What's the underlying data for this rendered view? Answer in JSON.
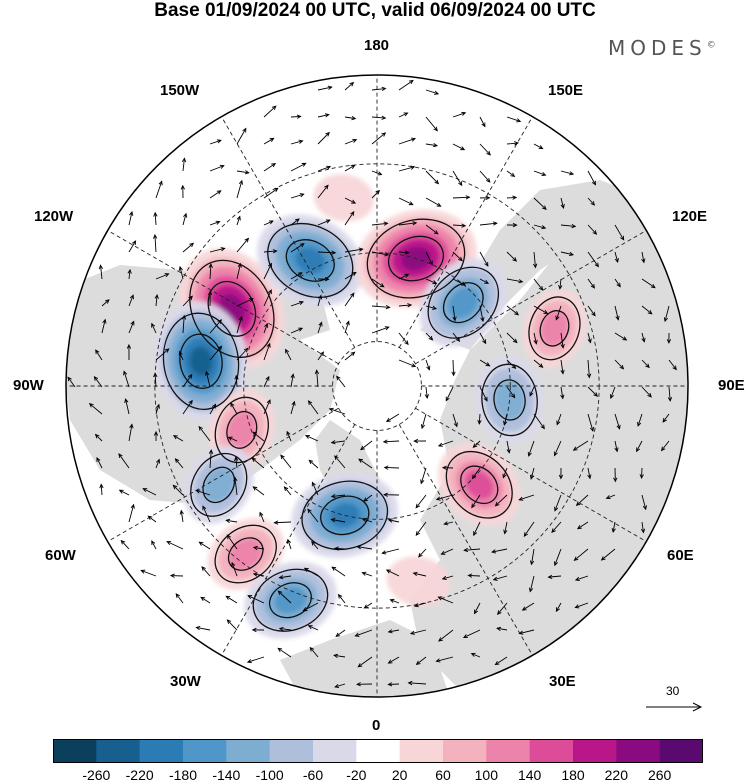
{
  "title": "Base 01/09/2024 00 UTC, valid 06/09/2024 00 UTC",
  "brand": {
    "text": "MODES",
    "mark": "©"
  },
  "longitude_labels": {
    "top": "180",
    "bottom": "0",
    "left": "90W",
    "right": "90E",
    "upper_left_1": "150W",
    "upper_left_2": "120W",
    "upper_right_1": "150E",
    "upper_right_2": "120E",
    "lower_left_1": "60W",
    "lower_left_2": "30W",
    "lower_right_1": "60E",
    "lower_right_2": "30E"
  },
  "vector_scale": {
    "label": "30"
  },
  "colorbar": {
    "labels": [
      "-260",
      "-220",
      "-180",
      "-140",
      "-100",
      "-60",
      "-20",
      "20",
      "60",
      "100",
      "140",
      "180",
      "220",
      "260"
    ],
    "colors": [
      "#0b3f5c",
      "#175f8e",
      "#2b7bb5",
      "#4f97c8",
      "#7eadd2",
      "#aebfdc",
      "#dad9ea",
      "#ffffff",
      "#f8d6d8",
      "#f3b2be",
      "#ec83aa",
      "#dd4c99",
      "#b9168a",
      "#8a0a80",
      "#5a0a6e"
    ]
  },
  "map": {
    "projection": "north-polar-stereographic",
    "land_color": "#dcdcdc",
    "ocean_color": "#ffffff",
    "anomalies": [
      {
        "lon": -118,
        "lat": 53,
        "value": 250
      },
      {
        "lon": -152,
        "lat": 58,
        "value": -200
      },
      {
        "lon": 163,
        "lat": 60,
        "value": 240
      },
      {
        "lon": 134,
        "lat": 63,
        "value": -160
      },
      {
        "lon": -98,
        "lat": 50,
        "value": -230
      },
      {
        "lon": -72,
        "lat": 58,
        "value": 110
      },
      {
        "lon": -58,
        "lat": 48,
        "value": -110
      },
      {
        "lon": -38,
        "lat": 42,
        "value": 110
      },
      {
        "lon": -14,
        "lat": 60,
        "value": -190
      },
      {
        "lon": -22,
        "lat": 38,
        "value": -150
      },
      {
        "lon": 46,
        "lat": 58,
        "value": 140
      },
      {
        "lon": 84,
        "lat": 60,
        "value": -130
      },
      {
        "lon": 108,
        "lat": 48,
        "value": 100
      },
      {
        "lon": 12,
        "lat": 45,
        "value": 50
      },
      {
        "lon": -170,
        "lat": 47,
        "value": 40
      }
    ]
  }
}
